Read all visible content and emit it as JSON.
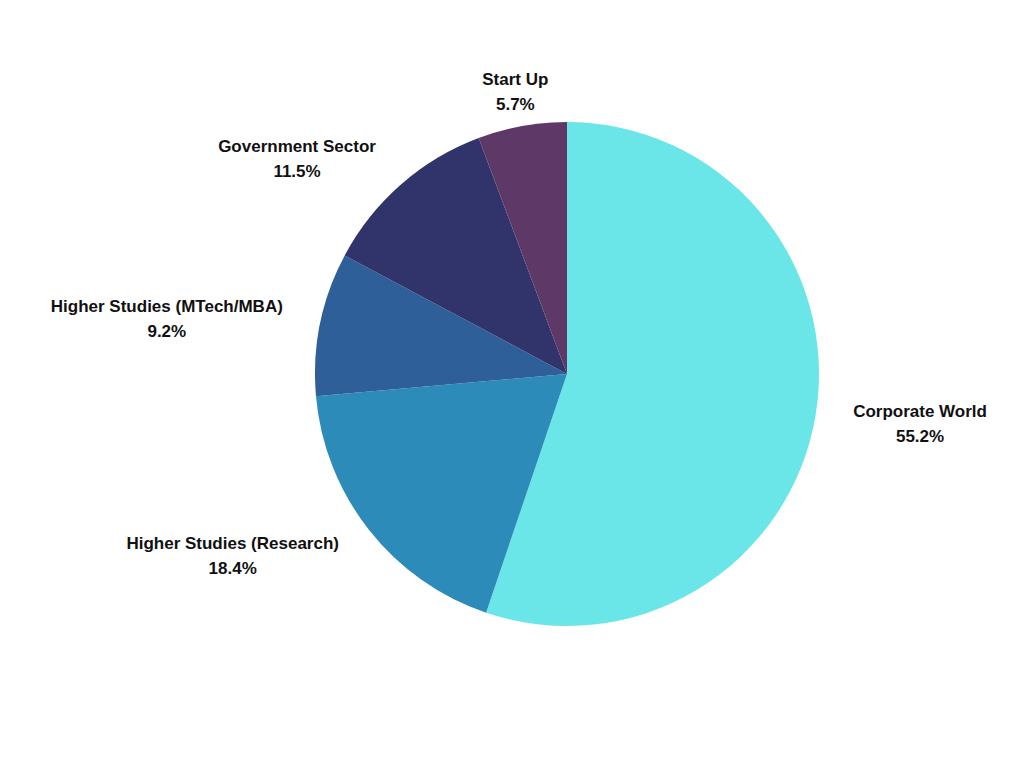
{
  "chart_data": {
    "type": "pie",
    "categories": [
      "Corporate World",
      "Higher Studies (Research)",
      "Higher Studies (MTech/MBA)",
      "Government Sector",
      "Start Up"
    ],
    "values": [
      55.2,
      18.4,
      9.2,
      11.5,
      5.7
    ],
    "value_labels": [
      "55.2%",
      "18.4%",
      "9.2%",
      "11.5%",
      "5.7%"
    ],
    "colors": [
      "#6be6e8",
      "#2d8bb9",
      "#2e5f98",
      "#31336b",
      "#5e3866"
    ],
    "data_labels": true
  }
}
